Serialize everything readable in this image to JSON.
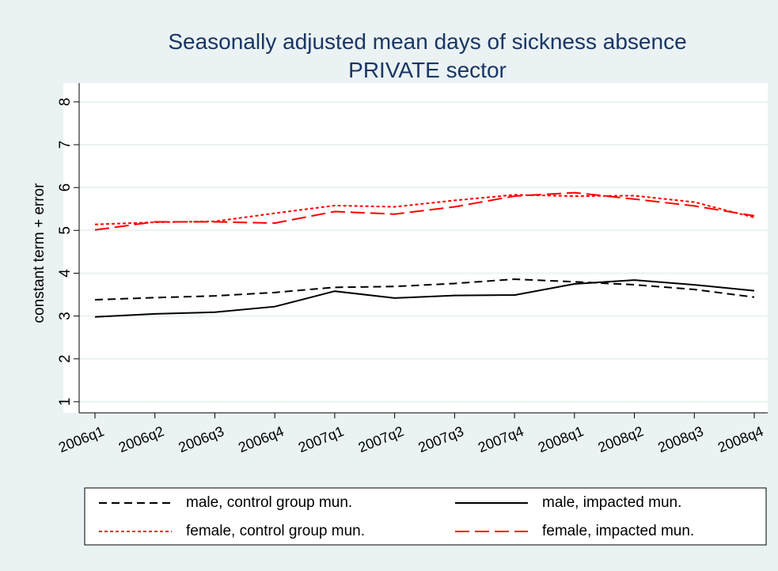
{
  "chart_data": {
    "type": "line",
    "title": "Seasonally adjusted mean days of sickness absence",
    "subtitle": "PRIVATE sector",
    "y_label": "constant term + error",
    "categories": [
      "2006q1",
      "2006q2",
      "2006q3",
      "2006q4",
      "2007q1",
      "2007q2",
      "2007q3",
      "2007q4",
      "2008q1",
      "2008q2",
      "2008q3",
      "2008q4"
    ],
    "series": [
      {
        "name": "male, control group mun.",
        "color": "#000000",
        "dash": "10,6",
        "values": [
          3.38,
          3.43,
          3.47,
          3.55,
          3.67,
          3.69,
          3.76,
          3.86,
          3.8,
          3.73,
          3.62,
          3.44
        ]
      },
      {
        "name": "male, impacted mun.",
        "color": "#000000",
        "dash": "none",
        "values": [
          2.98,
          3.05,
          3.09,
          3.22,
          3.58,
          3.42,
          3.48,
          3.49,
          3.75,
          3.84,
          3.73,
          3.59
        ]
      },
      {
        "name": "female, control group mun.",
        "color": "#ff0000",
        "dash": "4,3",
        "values": [
          5.14,
          5.19,
          5.21,
          5.4,
          5.58,
          5.55,
          5.7,
          5.83,
          5.8,
          5.81,
          5.66,
          5.3
        ]
      },
      {
        "name": "female, impacted mun.",
        "color": "#ff0000",
        "dash": "18,7",
        "values": [
          5.01,
          5.2,
          5.2,
          5.17,
          5.44,
          5.38,
          5.55,
          5.8,
          5.88,
          5.73,
          5.57,
          5.34
        ]
      }
    ],
    "ylim": [
      0.74,
      8.44
    ],
    "yticks": [
      1,
      2,
      3,
      4,
      5,
      6,
      7,
      8
    ],
    "grid": true,
    "legend": "bottom"
  }
}
